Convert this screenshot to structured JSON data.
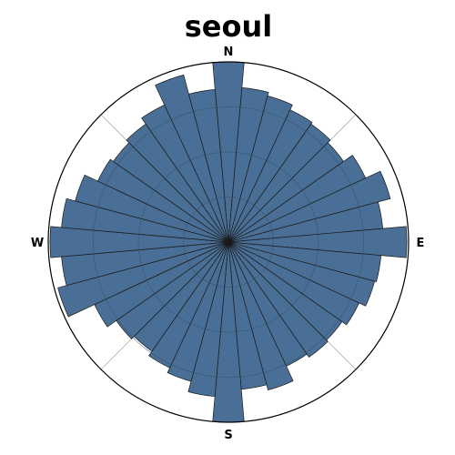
{
  "chart_data": {
    "type": "polar-bar",
    "title": "seoul",
    "direction_labels": {
      "north": "N",
      "east": "E",
      "south": "S",
      "west": "W"
    },
    "bins": 36,
    "bin_width_deg": 10,
    "r_max": 1.0,
    "grid": true,
    "grid_rings": [
      0.25,
      0.5,
      0.75
    ],
    "grid_spokes_deg": [
      0,
      45,
      90,
      135,
      180,
      225,
      270,
      315
    ],
    "bar_color": "#4a6f96",
    "bar_edge_color": "#1a1a1a",
    "directions_deg": [
      0,
      10,
      20,
      30,
      40,
      50,
      60,
      70,
      80,
      90,
      100,
      110,
      120,
      130,
      140,
      150,
      160,
      170,
      180,
      190,
      200,
      210,
      220,
      230,
      240,
      250,
      260,
      270,
      280,
      290,
      300,
      310,
      320,
      330,
      340,
      350
    ],
    "values": [
      1.0,
      0.86,
      0.84,
      0.81,
      0.8,
      0.78,
      0.84,
      0.93,
      0.86,
      0.99,
      0.85,
      0.84,
      0.8,
      0.77,
      0.78,
      0.76,
      0.85,
      0.82,
      1.0,
      0.86,
      0.8,
      0.77,
      0.74,
      0.76,
      0.82,
      0.98,
      0.93,
      0.99,
      0.93,
      0.88,
      0.8,
      0.78,
      0.8,
      0.84,
      0.96,
      0.85
    ]
  }
}
